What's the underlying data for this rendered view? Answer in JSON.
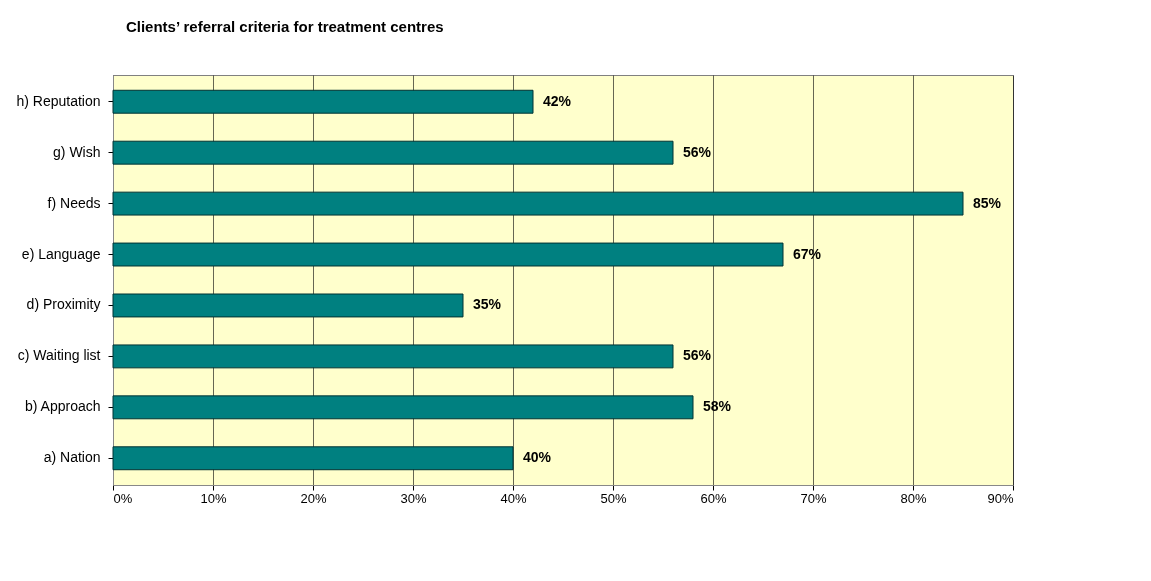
{
  "chart_data": {
    "type": "bar",
    "orientation": "horizontal",
    "title": "Clients’ referral criteria for treatment centres",
    "categories": [
      "h) Reputation",
      "g) Wish",
      "f) Needs",
      "e) Language",
      "d) Proximity",
      "c) Waiting list",
      "b) Approach",
      "a) Nation"
    ],
    "values": [
      42,
      56,
      85,
      67,
      35,
      56,
      58,
      40
    ],
    "value_labels": [
      "42%",
      "56%",
      "85%",
      "67%",
      "35%",
      "56%",
      "58%",
      "40%"
    ],
    "color": "#008080",
    "xlim": [
      0,
      90
    ],
    "xticks": [
      {
        "value": 0,
        "label": "0%"
      },
      {
        "value": 10,
        "label": "10%"
      },
      {
        "value": 20,
        "label": "20%"
      },
      {
        "value": 30,
        "label": "30%"
      },
      {
        "value": 40,
        "label": "40%"
      },
      {
        "value": 50,
        "label": "50%"
      },
      {
        "value": 60,
        "label": "60%"
      },
      {
        "value": 70,
        "label": "70%"
      },
      {
        "value": 80,
        "label": "80%"
      },
      {
        "value": 90,
        "label": "90%"
      }
    ],
    "grid": "x"
  }
}
